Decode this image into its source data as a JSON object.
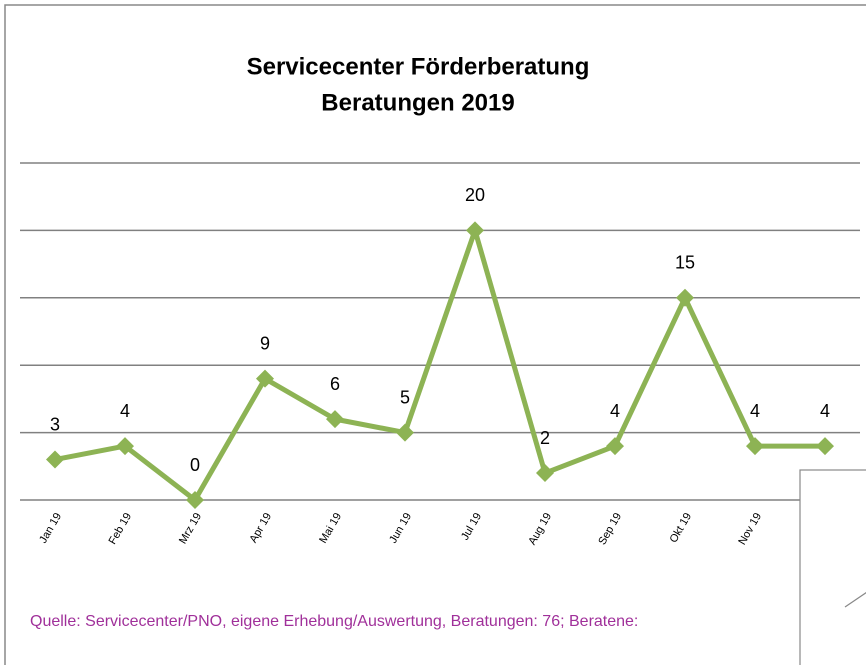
{
  "chart_data": {
    "type": "line",
    "title": "Servicecenter Förderberatung",
    "subtitle": "Beratungen 2019",
    "categories": [
      "Jan 19",
      "Feb 19",
      "Mrz 19",
      "Apr 19",
      "Mai 19",
      "Jun 19",
      "Jul 19",
      "Aug 19",
      "Sep 19",
      "Okt 19",
      "Nov 19",
      null
    ],
    "series": [
      {
        "color": "#8db354",
        "values": [
          3,
          4,
          0,
          9,
          6,
          5,
          20,
          2,
          4,
          15,
          4,
          4
        ]
      }
    ],
    "ylim": [
      0,
      25
    ],
    "yticks": [
      0,
      5,
      10,
      15,
      20,
      25
    ],
    "grid": true,
    "source": "Quelle: Servicecenter/PNO, eigene Erhebung/Auswertung, Beratungen: 76; Beratene:"
  }
}
